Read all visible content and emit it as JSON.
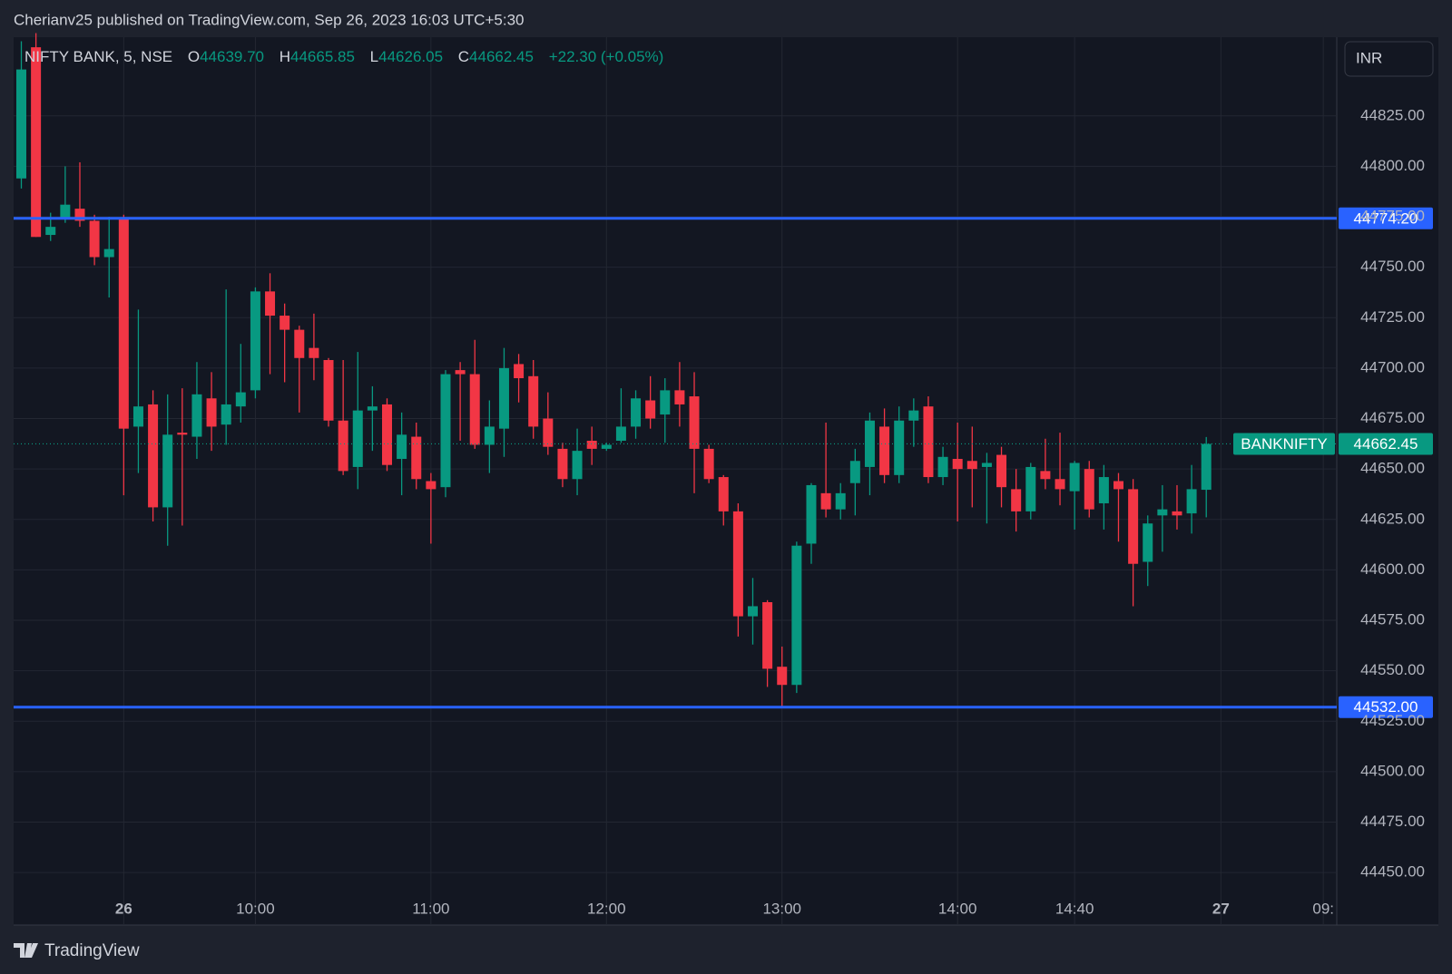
{
  "header": {
    "title": "Cherianv25 published on TradingView.com, Sep 26, 2023 16:03 UTC+5:30"
  },
  "footer": {
    "brand": "TradingView"
  },
  "toolbar": {
    "currency": "INR"
  },
  "legend": {
    "symbol": "NIFTY BANK, 5, NSE",
    "open": {
      "label": "O",
      "value": "44639.70"
    },
    "high": {
      "label": "H",
      "value": "44665.85"
    },
    "low": {
      "label": "L",
      "value": "44626.05"
    },
    "close": {
      "label": "C",
      "value": "44662.45"
    },
    "change": "+22.30 (+0.05%)"
  },
  "chart_data": {
    "type": "candlestick",
    "up_color": "#089981",
    "down_color": "#f23645",
    "open": [
      44794,
      44859,
      44766,
      44774,
      44779,
      44773,
      44755,
      44774,
      44671,
      44682,
      44631,
      44668,
      44666,
      44685,
      44672,
      44681,
      44689,
      44738,
      44726,
      44719,
      44710,
      44704,
      44674,
      44651,
      44679,
      44682,
      44655,
      44666,
      44644,
      44641,
      44699,
      44697,
      44662,
      44670,
      44702,
      44696,
      44675,
      44660,
      44645,
      44664,
      44660,
      44664,
      44671,
      44684,
      44677,
      44689,
      44686,
      44660,
      44646,
      44629,
      44577,
      44584,
      44552,
      44543,
      44613,
      44638,
      44630,
      44643,
      44651,
      44671,
      44647,
      44674,
      44681,
      44646,
      44655,
      44654,
      44651,
      44657,
      44640,
      44629,
      44649,
      44645,
      44639,
      44650,
      44633,
      44644,
      44640,
      44604,
      44627,
      44629,
      44628,
      44639.7
    ],
    "high": [
      44862,
      44866,
      44777,
      44800,
      44802,
      44776,
      44775,
      44776,
      44729,
      44689,
      44687,
      44690,
      44703,
      44698,
      44739,
      44712,
      44740,
      44747,
      44732,
      44721,
      44727,
      44705,
      44704,
      44708,
      44691,
      44685,
      44678,
      44673,
      44648,
      44699,
      44703,
      44714,
      44684,
      44710,
      44707,
      44704,
      44688,
      44663,
      44670,
      44671,
      44663,
      44690,
      44689,
      44696,
      44695,
      44703,
      44698,
      44662,
      44647,
      44633,
      44596,
      44585,
      44562,
      44614,
      44643,
      44673,
      44643,
      44660,
      44678,
      44680,
      44681,
      44685,
      44686,
      44661,
      44673,
      44671,
      44658,
      44661,
      44650,
      44653,
      44665,
      44668,
      44654,
      44654,
      44652,
      44648,
      44645,
      44627,
      44642,
      44642,
      44652,
      44665.85
    ],
    "low": [
      44789,
      44765,
      44763,
      44772,
      44770,
      44751,
      44735,
      44637,
      44648,
      44624,
      44612,
      44622,
      44655,
      44659,
      44662,
      44673,
      44685,
      44697,
      44693,
      44678,
      44694,
      44671,
      44647,
      44640,
      44659,
      44649,
      44637,
      44640,
      44613,
      44636,
      44664,
      44660,
      44648,
      44656,
      44683,
      44665,
      44657,
      44641,
      44637,
      44652,
      44659,
      44663,
      44665,
      44670,
      44663,
      44671,
      44638,
      44643,
      44622,
      44567,
      44563,
      44542,
      44532,
      44539,
      44603,
      44626,
      44625,
      44627,
      44637,
      44643,
      44643,
      44661,
      44643,
      44642,
      44624,
      44631,
      44623,
      44631,
      44619,
      44625,
      44640,
      44632,
      44620,
      44626,
      44620,
      44614,
      44582,
      44592,
      44609,
      44620,
      44618,
      44626.05
    ],
    "close": [
      44848,
      44765,
      44770,
      44781,
      44773,
      44755,
      44759,
      44670,
      44681,
      44631,
      44667,
      44667,
      44687,
      44671,
      44682,
      44688,
      44738,
      44726,
      44719,
      44705,
      44705,
      44674,
      44649,
      44679,
      44681,
      44652,
      44667,
      44645,
      44640,
      44697,
      44697,
      44662,
      44671,
      44700,
      44695,
      44671,
      44661,
      44645,
      44659,
      44660,
      44662,
      44671,
      44685,
      44675,
      44689,
      44682,
      44660,
      44645,
      44629,
      44577,
      44582,
      44551,
      44543,
      44612,
      44642,
      44630,
      44638,
      44654,
      44674,
      44647,
      44674,
      44679,
      44646,
      44656,
      44650,
      44650,
      44653,
      44641,
      44629,
      44651,
      44645,
      44640,
      44653,
      44630,
      44646,
      44640,
      44603,
      44623,
      44630,
      44627,
      44640,
      44662.45
    ],
    "ylim": [
      44424,
      44864
    ],
    "yticks": [
      {
        "value": 44450,
        "label": "44450.00"
      },
      {
        "value": 44475,
        "label": "44475.00"
      },
      {
        "value": 44500,
        "label": "44500.00"
      },
      {
        "value": 44525,
        "label": "44525.00"
      },
      {
        "value": 44550,
        "label": "44550.00"
      },
      {
        "value": 44575,
        "label": "44575.00"
      },
      {
        "value": 44600,
        "label": "44600.00"
      },
      {
        "value": 44625,
        "label": "44625.00"
      },
      {
        "value": 44650,
        "label": "44650.00"
      },
      {
        "value": 44675,
        "label": "44675.00"
      },
      {
        "value": 44700,
        "label": "44700.00"
      },
      {
        "value": 44725,
        "label": "44725.00"
      },
      {
        "value": 44750,
        "label": "44750.00"
      },
      {
        "value": 44775,
        "label": "44775.00"
      },
      {
        "value": 44800,
        "label": "44800.00"
      },
      {
        "value": 44825,
        "label": "44825.00"
      }
    ],
    "xticks": [
      {
        "value": 7,
        "label": "26"
      },
      {
        "value": 16,
        "label": "10:00"
      },
      {
        "value": 28,
        "label": "11:00"
      },
      {
        "value": 40,
        "label": "12:00"
      },
      {
        "value": 52,
        "label": "13:00"
      },
      {
        "value": 64,
        "label": "14:00"
      },
      {
        "value": 72,
        "label": "14:40"
      },
      {
        "value": 82,
        "label": "27"
      },
      {
        "value": 89,
        "label": "09:"
      }
    ],
    "grid": true,
    "hlines": [
      {
        "value": 44774.2,
        "label": "44774.20",
        "color": "#2962ff"
      },
      {
        "value": 44532,
        "label": "44532.00",
        "color": "#2962ff"
      }
    ],
    "last_price": {
      "name": "BANKNIFTY",
      "value": 44662.45,
      "label": "44662.45",
      "color": "#089981"
    }
  }
}
